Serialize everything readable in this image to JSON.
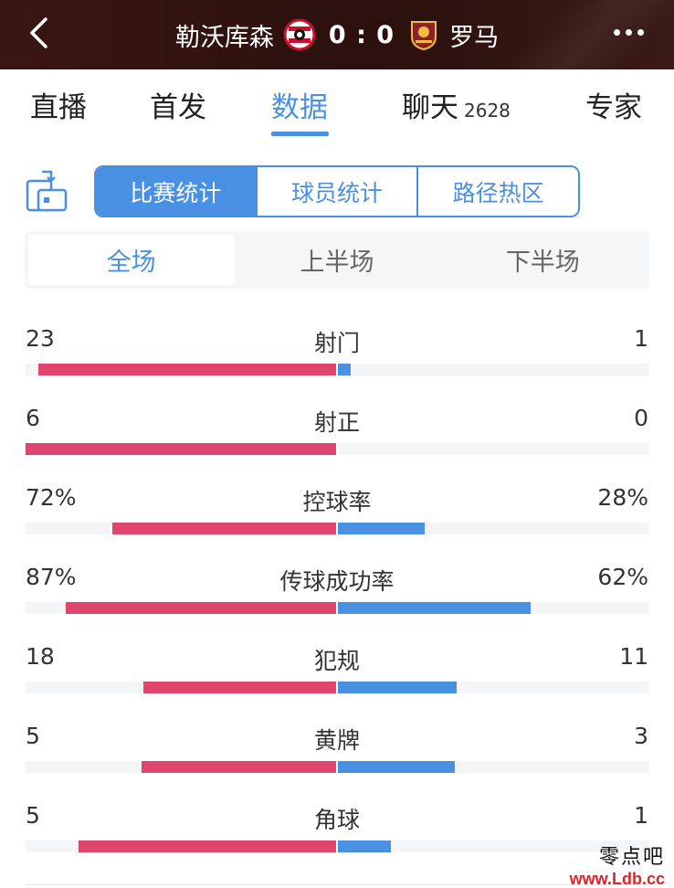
{
  "header": {
    "home_team": "勒沃库森",
    "away_team": "罗马",
    "score": "0 : 0"
  },
  "tabs": [
    {
      "label": "直播",
      "active": false
    },
    {
      "label": "首发",
      "active": false
    },
    {
      "label": "数据",
      "active": true
    },
    {
      "label": "聊天",
      "count": "2628",
      "active": false
    },
    {
      "label": "专家",
      "active": false
    }
  ],
  "segments": [
    {
      "label": "比赛统计",
      "active": true
    },
    {
      "label": "球员统计",
      "active": false
    },
    {
      "label": "路径热区",
      "active": false
    }
  ],
  "periods": [
    {
      "label": "全场",
      "active": true
    },
    {
      "label": "上半场",
      "active": false
    },
    {
      "label": "下半场",
      "active": false
    }
  ],
  "stats": [
    {
      "label": "射门",
      "left": "23",
      "right": "1",
      "left_frac": 0.96,
      "right_frac": 0.04
    },
    {
      "label": "射正",
      "left": "6",
      "right": "0",
      "left_frac": 1.0,
      "right_frac": 0.0
    },
    {
      "label": "控球率",
      "left": "72%",
      "right": "28%",
      "left_frac": 0.72,
      "right_frac": 0.28
    },
    {
      "label": "传球成功率",
      "left": "87%",
      "right": "62%",
      "left_frac": 0.87,
      "right_frac": 0.62
    },
    {
      "label": "犯规",
      "left": "18",
      "right": "11",
      "left_frac": 0.62,
      "right_frac": 0.38
    },
    {
      "label": "黄牌",
      "left": "5",
      "right": "3",
      "left_frac": 0.625,
      "right_frac": 0.375
    },
    {
      "label": "角球",
      "left": "5",
      "right": "1",
      "left_frac": 0.83,
      "right_frac": 0.17
    }
  ],
  "watermark": {
    "line1": "零点吧",
    "line2": "www.Ldb.cc"
  },
  "colors": {
    "accent": "#4a90e2",
    "home_bar": "#e0456e",
    "away_bar": "#4a90e2",
    "header_bg": "#2b100d"
  }
}
